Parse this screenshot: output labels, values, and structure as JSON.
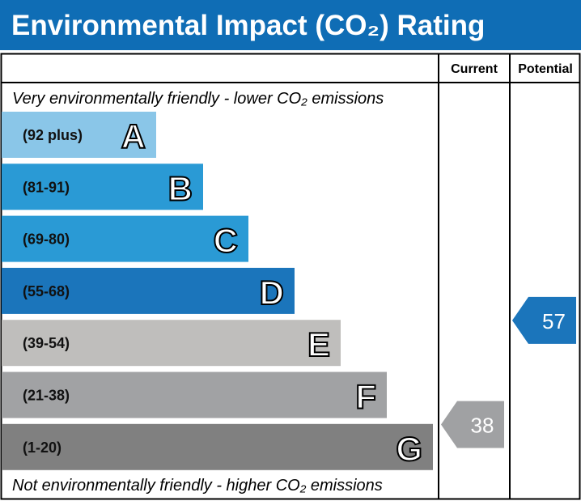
{
  "title": "Environmental Impact (CO₂) Rating",
  "colors": {
    "header": "#0F6DB5",
    "current_arrow": "#A0A1A3",
    "potential_arrow": "#1B75BB"
  },
  "chart_data": {
    "type": "table",
    "columns": [
      "Current",
      "Potential"
    ],
    "top_note": "Very environmentally friendly - lower CO₂ emissions",
    "bottom_note": "Not environmentally friendly - higher CO₂ emissions",
    "bands": [
      {
        "letter": "A",
        "range": "(92 plus)",
        "color": "#8AC6E8"
      },
      {
        "letter": "B",
        "range": "(81-91)",
        "color": "#2A9AD5"
      },
      {
        "letter": "C",
        "range": "(69-80)",
        "color": "#2A9AD5"
      },
      {
        "letter": "D",
        "range": "(55-68)",
        "color": "#1B75BB"
      },
      {
        "letter": "E",
        "range": "(39-54)",
        "color": "#BFBEBC"
      },
      {
        "letter": "F",
        "range": "(21-38)",
        "color": "#A1A2A4"
      },
      {
        "letter": "G",
        "range": "(1-20)",
        "color": "#808080"
      }
    ],
    "current": {
      "value": "38",
      "band": "F"
    },
    "potential": {
      "value": "57",
      "band": "D"
    }
  }
}
